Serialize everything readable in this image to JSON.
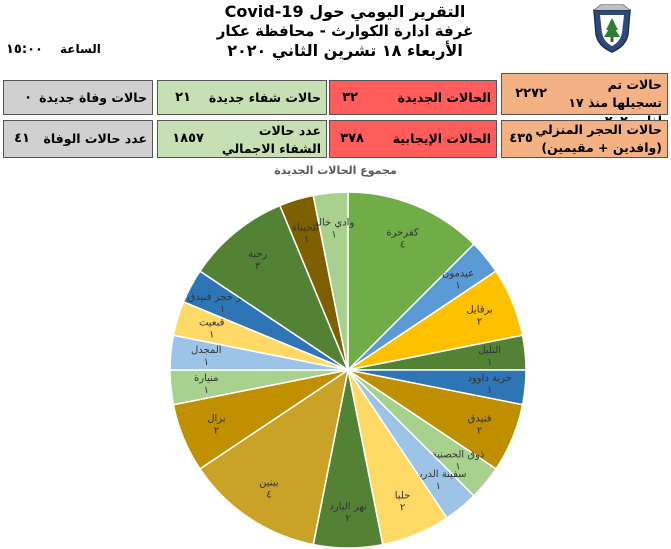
{
  "header": {
    "title_line1": "التقرير اليومي حول Covid-19",
    "title_line2": "غرفة ادارة الكوارث - محافظة عكار",
    "date_line": "الأربعاء ١٨ تشرين الثاني ٢٠٢٠",
    "time_label": "الساعة",
    "time_value": "١٥:٠٠"
  },
  "stats": {
    "registered_label": "حالات تم تسجيلها منذ ١٧ اذار ٢٠٢٠",
    "registered_value": "٢٢٧٢",
    "new_cases_label": "الحالات الجديدة",
    "new_cases_value": "٣٢",
    "new_recoveries_label": "حالات شفاء جديدة",
    "new_recoveries_value": "٢١",
    "new_deaths_label": "حالات وفاة جديدة",
    "new_deaths_value": "٠",
    "home_quarantine_label": "حالات الحجر المنزلي",
    "home_quarantine_sub": "(وافدين + مقيمين)",
    "home_quarantine_value": "٤٣٥",
    "positive_label": "الحالات الإيجابية",
    "positive_value": "٣٧٨",
    "total_recoveries_label": "عدد حالات الشفاء الاجمالي",
    "total_recoveries_value": "١٨٥٧",
    "deaths_label": "عدد حالات الوفاة",
    "deaths_value": "٤١"
  },
  "chart_data": {
    "type": "pie",
    "title": "مجموع الحالات الجديدة",
    "slices": [
      {
        "label": "كفرحرة",
        "value": 4,
        "display": "٤",
        "color": "#70ad47"
      },
      {
        "label": "عيدمون",
        "value": 1,
        "display": "١",
        "color": "#5b9bd5"
      },
      {
        "label": "برقايل",
        "value": 2,
        "display": "٢",
        "color": "#ffc000"
      },
      {
        "label": "التليل",
        "value": 1,
        "display": "١",
        "color": "#548235"
      },
      {
        "label": "خربة داوود",
        "value": 1,
        "display": "١",
        "color": "#2e75b6"
      },
      {
        "label": "فنيدق",
        "value": 2,
        "display": "٢",
        "color": "#bf8f00"
      },
      {
        "label": "ذوق الحصنية",
        "value": 1,
        "display": "١",
        "color": "#a9d18e"
      },
      {
        "label": "سفينة الدريب",
        "value": 1,
        "display": "١",
        "color": "#9dc3e6"
      },
      {
        "label": "حلبا",
        "value": 2,
        "display": "٢",
        "color": "#ffd966"
      },
      {
        "label": "نهر البارد",
        "value": 2,
        "display": "٢",
        "color": "#548235"
      },
      {
        "label": "ببنين",
        "value": 4,
        "display": "٤",
        "color": "#c9a227"
      },
      {
        "label": "بزال",
        "value": 2,
        "display": "٢",
        "color": "#c09000"
      },
      {
        "label": "منيارة",
        "value": 1,
        "display": "١",
        "color": "#a9d18e"
      },
      {
        "label": "المجدل",
        "value": 1,
        "display": "١",
        "color": "#9dc3e6"
      },
      {
        "label": "قبعيت",
        "value": 1,
        "display": "١",
        "color": "#ffd966"
      },
      {
        "label": "مركز حجر فنيدق",
        "value": 1,
        "display": "١",
        "color": "#2e75b6"
      },
      {
        "label": "رحبة",
        "value": 3,
        "display": "٣",
        "color": "#548235"
      },
      {
        "label": "التحيناة",
        "value": 1,
        "display": "١",
        "color": "#7f6000"
      },
      {
        "label": "وادي خالد",
        "value": 1,
        "display": "١",
        "color": "#a9d18e"
      }
    ]
  }
}
